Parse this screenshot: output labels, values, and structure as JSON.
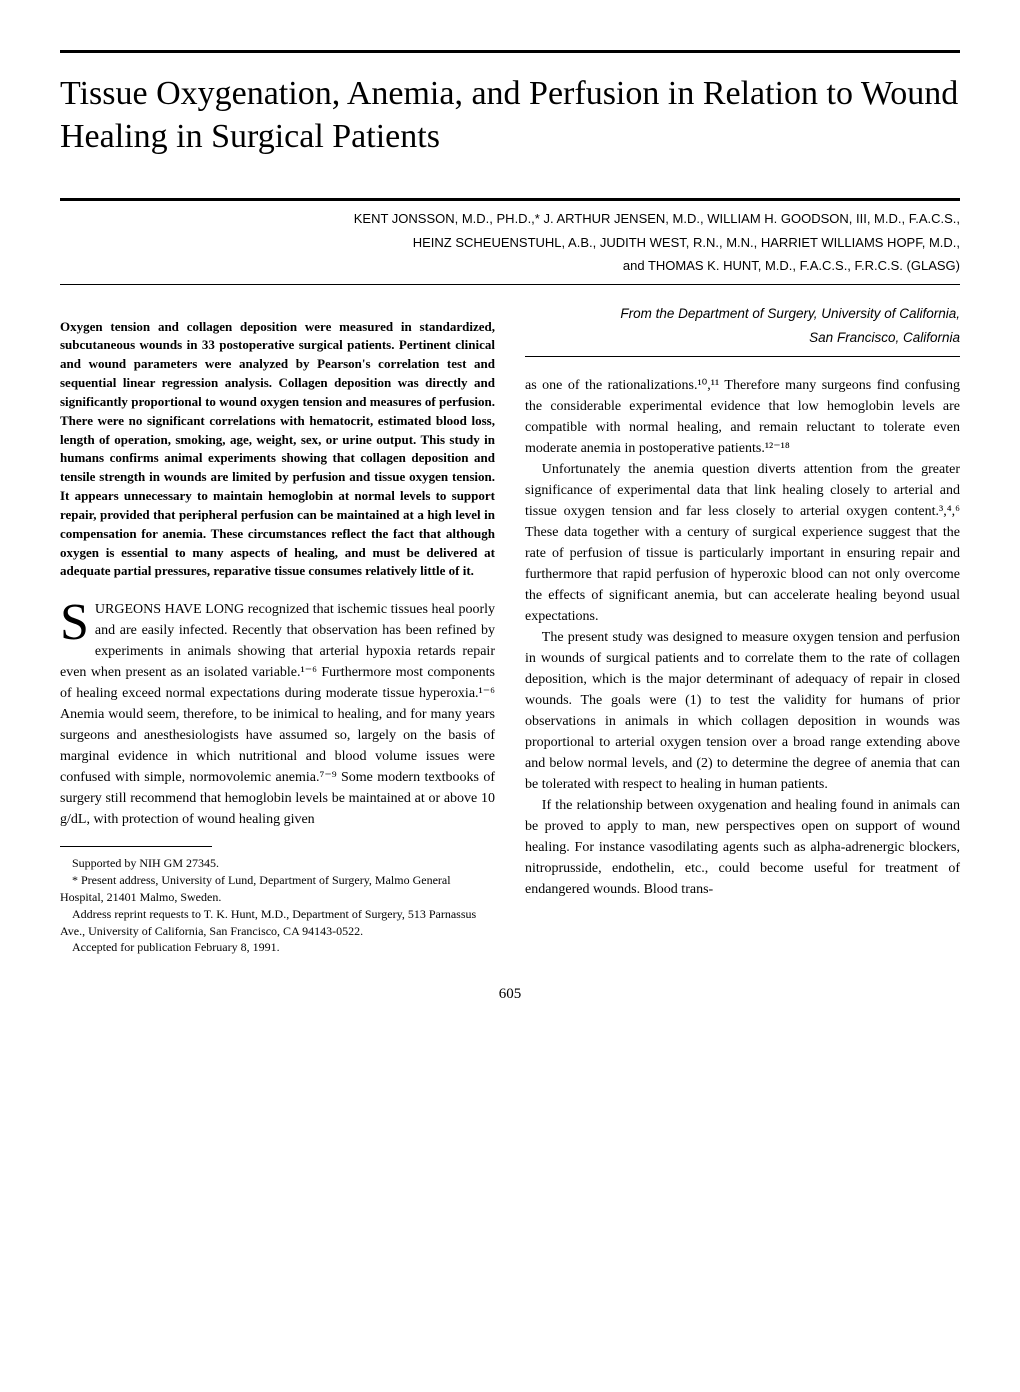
{
  "title": "Tissue Oxygenation, Anemia, and Perfusion in Relation to Wound Healing in Surgical Patients",
  "authors_line1": "KENT JONSSON, M.D., PH.D.,* J. ARTHUR JENSEN, M.D., WILLIAM H. GOODSON, III, M.D., F.A.C.S.,",
  "authors_line2": "HEINZ SCHEUENSTUHL, A.B., JUDITH WEST, R.N., M.N., HARRIET WILLIAMS HOPF, M.D.,",
  "authors_line3": "and THOMAS K. HUNT, M.D., F.A.C.S., F.R.C.S. (GLASG)",
  "abstract": "Oxygen tension and collagen deposition were measured in standardized, subcutaneous wounds in 33 postoperative surgical patients. Pertinent clinical and wound parameters were analyzed by Pearson's correlation test and sequential linear regression analysis. Collagen deposition was directly and significantly proportional to wound oxygen tension and measures of perfusion. There were no significant correlations with hematocrit, estimated blood loss, length of operation, smoking, age, weight, sex, or urine output. This study in humans confirms animal experiments showing that collagen deposition and tensile strength in wounds are limited by perfusion and tissue oxygen tension. It appears unnecessary to maintain hemoglobin at normal levels to support repair, provided that peripheral perfusion can be maintained at a high level in compensation for anemia. These circumstances reflect the fact that although oxygen is essential to many aspects of healing, and must be delivered at adequate partial pressures, reparative tissue consumes relatively little of it.",
  "dropcap_letter": "S",
  "body_left_1_after_cap": "URGEONS HAVE LONG recognized that ischemic tissues heal poorly and are easily infected. Recently that observation has been refined by experiments in animals showing that arterial hypoxia retards repair even when present as an isolated variable.¹⁻⁶ Furthermore most components of healing exceed normal expectations during moderate tissue hyperoxia.¹⁻⁶ Anemia would seem, therefore, to be inimical to healing, and for many years surgeons and anesthesiologists have assumed so, largely on the basis of marginal evidence in which nutritional and blood volume issues were confused with simple, normovolemic anemia.⁷⁻⁹ Some modern textbooks of surgery still recommend that hemoglobin levels be maintained at or above 10 g/dL, with protection of wound healing given",
  "affiliation_line1": "From the Department of Surgery, University of California,",
  "affiliation_line2": "San Francisco, California",
  "body_right_1": "as one of the rationalizations.¹⁰,¹¹ Therefore many surgeons find confusing the considerable experimental evidence that low hemoglobin levels are compatible with normal healing, and remain reluctant to tolerate even moderate anemia in postoperative patients.¹²⁻¹⁸",
  "body_right_2": "Unfortunately the anemia question diverts attention from the greater significance of experimental data that link healing closely to arterial and tissue oxygen tension and far less closely to arterial oxygen content.³,⁴,⁶ These data together with a century of surgical experience suggest that the rate of perfusion of tissue is particularly important in ensuring repair and furthermore that rapid perfusion of hyperoxic blood can not only overcome the effects of significant anemia, but can accelerate healing beyond usual expectations.",
  "body_right_3": "The present study was designed to measure oxygen tension and perfusion in wounds of surgical patients and to correlate them to the rate of collagen deposition, which is the major determinant of adequacy of repair in closed wounds. The goals were (1) to test the validity for humans of prior observations in animals in which collagen deposition in wounds was proportional to arterial oxygen tension over a broad range extending above and below normal levels, and (2) to determine the degree of anemia that can be tolerated with respect to healing in human patients.",
  "body_right_4": "If the relationship between oxygenation and healing found in animals can be proved to apply to man, new perspectives open on support of wound healing. For instance vasodilating agents such as alpha-adrenergic blockers, nitroprusside, endothelin, etc., could become useful for treatment of endangered wounds. Blood trans-",
  "footnote_1": "Supported by NIH GM 27345.",
  "footnote_2": "* Present address, University of Lund, Department of Surgery, Malmo General Hospital, 21401 Malmo, Sweden.",
  "footnote_3": "Address reprint requests to T. K. Hunt, M.D., Department of Surgery, 513 Parnassus Ave., University of California, San Francisco, CA 94143-0522.",
  "footnote_4": "Accepted for publication February 8, 1991.",
  "page_number": "605"
}
